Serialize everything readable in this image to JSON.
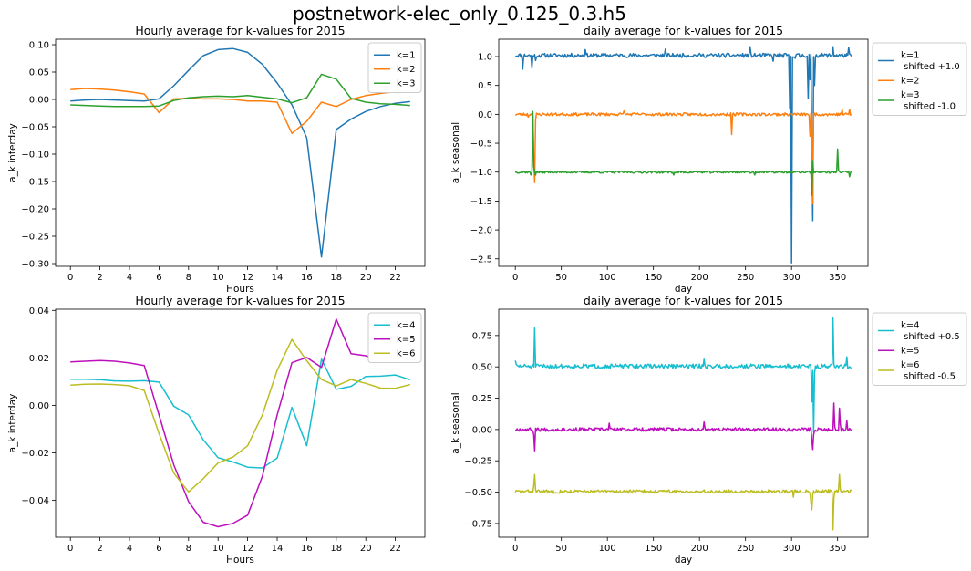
{
  "figure_title": "postnetwork-elec_only_0.125_0.3.h5",
  "chart_data": [
    {
      "type": "line",
      "title": "Hourly average for k-values for 2015",
      "xlabel": "Hours",
      "ylabel": "a_k interday",
      "xlim": [
        -1,
        24
      ],
      "ylim": [
        -0.305,
        0.11
      ],
      "xticks": [
        0,
        2,
        4,
        6,
        8,
        10,
        12,
        14,
        16,
        18,
        20,
        22
      ],
      "yticks": [
        -0.3,
        -0.25,
        -0.2,
        -0.15,
        -0.1,
        -0.05,
        0.0,
        0.05,
        0.1
      ],
      "ytick_labels": [
        "−0.30",
        "−0.25",
        "−0.20",
        "−0.15",
        "−0.10",
        "−0.05",
        "0.00",
        "0.05",
        "0.10"
      ],
      "legend_position": "top-right",
      "legend_outside": false,
      "x": [
        0,
        1,
        2,
        3,
        4,
        5,
        6,
        7,
        8,
        9,
        10,
        11,
        12,
        13,
        14,
        15,
        16,
        17,
        18,
        19,
        20,
        21,
        22,
        23
      ],
      "series": [
        {
          "name": "k=1",
          "color": "#1f77b4",
          "values": [
            -0.003,
            -0.001,
            0.0,
            -0.001,
            -0.002,
            -0.003,
            0.001,
            0.025,
            0.053,
            0.08,
            0.091,
            0.093,
            0.086,
            0.064,
            0.03,
            -0.01,
            -0.07,
            -0.288,
            -0.055,
            -0.036,
            -0.022,
            -0.013,
            -0.007,
            -0.004
          ]
        },
        {
          "name": "k=2",
          "color": "#ff7f0e",
          "values": [
            0.018,
            0.02,
            0.019,
            0.017,
            0.014,
            0.01,
            -0.024,
            0.001,
            0.002,
            0.001,
            0.001,
            0.0,
            -0.003,
            -0.003,
            -0.005,
            -0.062,
            -0.04,
            -0.005,
            -0.013,
            0.0,
            0.007,
            0.011,
            0.014,
            0.016
          ]
        },
        {
          "name": "k=3",
          "color": "#2ca02c",
          "values": [
            -0.01,
            -0.011,
            -0.012,
            -0.013,
            -0.013,
            -0.013,
            -0.012,
            -0.002,
            0.003,
            0.005,
            0.006,
            0.005,
            0.007,
            0.004,
            0.001,
            -0.006,
            0.003,
            0.046,
            0.037,
            0.002,
            -0.005,
            -0.008,
            -0.009,
            -0.011
          ]
        }
      ]
    },
    {
      "type": "line",
      "title": "daily average for k-values for 2015",
      "xlabel": "day",
      "ylabel": "a_k seasonal",
      "xlim": [
        -18,
        383
      ],
      "ylim": [
        -2.63,
        1.3
      ],
      "xticks": [
        0,
        50,
        100,
        150,
        200,
        250,
        300,
        350
      ],
      "yticks": [
        -2.5,
        -2.0,
        -1.5,
        -1.0,
        -0.5,
        0.0,
        0.5,
        1.0
      ],
      "ytick_labels": [
        "−2.5",
        "−2.0",
        "−1.5",
        "−1.0",
        "−0.5",
        "0.0",
        "0.5",
        "1.0"
      ],
      "legend_position": "outside-right",
      "legend_outside": true,
      "series": [
        {
          "name": "k=1\n shifted +1.0",
          "color": "#1f77b4",
          "base": 1.02,
          "noise": 0.035,
          "seed": 11,
          "spikes": [
            [
              8,
              0.78
            ],
            [
              18,
              0.8
            ],
            [
              22,
              0.93
            ],
            [
              76,
              1.12
            ],
            [
              163,
              1.13
            ],
            [
              255,
              1.17
            ],
            [
              280,
              0.92
            ],
            [
              298,
              0.1
            ],
            [
              300,
              -2.57
            ],
            [
              304,
              0.97
            ],
            [
              309,
              0.99
            ],
            [
              318,
              0.27
            ],
            [
              320,
              0.6
            ],
            [
              322,
              -0.5
            ],
            [
              323,
              -1.84
            ],
            [
              325,
              0.5
            ],
            [
              345,
              1.17
            ],
            [
              362,
              1.16
            ]
          ]
        },
        {
          "name": "k=2",
          "color": "#ff7f0e",
          "base": 0.0,
          "noise": 0.025,
          "seed": 23,
          "spikes": [
            [
              14,
              -0.05
            ],
            [
              20,
              -0.8
            ],
            [
              21,
              -1.18
            ],
            [
              22,
              -0.1
            ],
            [
              118,
              0.06
            ],
            [
              235,
              -0.35
            ],
            [
              320,
              -0.38
            ],
            [
              322,
              -0.12
            ],
            [
              323,
              -1.55
            ],
            [
              325,
              0.02
            ],
            [
              355,
              0.08
            ],
            [
              363,
              0.09
            ]
          ]
        },
        {
          "name": "k=3\n shifted -1.0",
          "color": "#2ca02c",
          "base": -1.0,
          "noise": 0.018,
          "seed": 37,
          "spikes": [
            [
              17,
              -1.05
            ],
            [
              19,
              0.05
            ],
            [
              20,
              -0.9
            ],
            [
              22,
              -1.05
            ],
            [
              172,
              -1.05
            ],
            [
              260,
              -1.05
            ],
            [
              322,
              -1.4
            ],
            [
              323,
              -0.8
            ],
            [
              325,
              -1.0
            ],
            [
              350,
              -0.6
            ],
            [
              351,
              -0.97
            ],
            [
              363,
              -1.08
            ]
          ]
        }
      ]
    },
    {
      "type": "line",
      "title": "Hourly average for k-values for 2015",
      "xlabel": "Hours",
      "ylabel": "a_k interday",
      "xlim": [
        -1,
        24
      ],
      "ylim": [
        -0.0555,
        0.0405
      ],
      "xticks": [
        0,
        2,
        4,
        6,
        8,
        10,
        12,
        14,
        16,
        18,
        20,
        22
      ],
      "yticks": [
        -0.04,
        -0.02,
        0.0,
        0.02,
        0.04
      ],
      "ytick_labels": [
        "−0.04",
        "−0.02",
        "0.00",
        "0.02",
        "0.04"
      ],
      "legend_position": "top-right",
      "legend_outside": false,
      "x": [
        0,
        1,
        2,
        3,
        4,
        5,
        6,
        7,
        8,
        9,
        10,
        11,
        12,
        13,
        14,
        15,
        16,
        17,
        18,
        19,
        20,
        21,
        22,
        23
      ],
      "series": [
        {
          "name": "k=4",
          "color": "#17becf",
          "values": [
            0.011,
            0.011,
            0.0108,
            0.0103,
            0.0102,
            0.0104,
            0.0098,
            -0.0003,
            -0.004,
            -0.0145,
            -0.022,
            -0.0238,
            -0.026,
            -0.0263,
            -0.0222,
            -0.0008,
            -0.017,
            0.0195,
            0.0068,
            0.008,
            0.0122,
            0.0123,
            0.0128,
            0.0108
          ]
        },
        {
          "name": "k=5",
          "color": "#bd10bd",
          "values": [
            0.0183,
            0.0186,
            0.0189,
            0.0186,
            0.0179,
            0.0168,
            -0.004,
            -0.025,
            -0.0405,
            -0.0492,
            -0.0511,
            -0.0497,
            -0.0462,
            -0.0298,
            -0.004,
            0.018,
            0.0202,
            0.016,
            0.0363,
            0.0218,
            0.0209,
            0.0185,
            0.0185,
            0.0188
          ]
        },
        {
          "name": "k=6",
          "color": "#bcbd22",
          "values": [
            0.0085,
            0.0089,
            0.009,
            0.0088,
            0.0083,
            0.0063,
            -0.0118,
            -0.0285,
            -0.0364,
            -0.0308,
            -0.0242,
            -0.0218,
            -0.017,
            -0.004,
            0.0148,
            0.0278,
            0.0188,
            0.0109,
            0.0082,
            0.0109,
            0.0093,
            0.0073,
            0.0072,
            0.0088
          ]
        }
      ]
    },
    {
      "type": "line",
      "title": "daily average for k-values for 2015",
      "xlabel": "day",
      "ylabel": "a_k seasonal",
      "xlim": [
        -18,
        383
      ],
      "ylim": [
        -0.86,
        0.96
      ],
      "xticks": [
        0,
        50,
        100,
        150,
        200,
        250,
        300,
        350
      ],
      "yticks": [
        -0.75,
        -0.5,
        -0.25,
        0.0,
        0.25,
        0.5,
        0.75
      ],
      "ytick_labels": [
        "−0.75",
        "−0.50",
        "−0.25",
        "0.00",
        "0.25",
        "0.50",
        "0.75"
      ],
      "legend_position": "outside-right",
      "legend_outside": true,
      "series": [
        {
          "name": "k=4\n shifted +0.5",
          "color": "#17becf",
          "base": 0.505,
          "noise": 0.017,
          "seed": 51,
          "spikes": [
            [
              0,
              0.55
            ],
            [
              20,
              0.5
            ],
            [
              21,
              0.81
            ],
            [
              22,
              0.5
            ],
            [
              205,
              0.56
            ],
            [
              322,
              0.22
            ],
            [
              323,
              0.47
            ],
            [
              324,
              -0.02
            ],
            [
              325,
              0.45
            ],
            [
              345,
              0.89
            ],
            [
              346,
              0.52
            ],
            [
              360,
              0.58
            ],
            [
              365,
              0.49
            ]
          ]
        },
        {
          "name": "k=5",
          "color": "#bd10bd",
          "base": 0.0,
          "noise": 0.014,
          "seed": 67,
          "spikes": [
            [
              20,
              -0.04
            ],
            [
              21,
              -0.17
            ],
            [
              22,
              0.01
            ],
            [
              102,
              0.05
            ],
            [
              205,
              0.06
            ],
            [
              322,
              -0.08
            ],
            [
              323,
              -0.16
            ],
            [
              324,
              -0.04
            ],
            [
              346,
              0.21
            ],
            [
              347,
              0.02
            ],
            [
              352,
              0.17
            ],
            [
              353,
              0.04
            ],
            [
              360,
              0.07
            ]
          ]
        },
        {
          "name": "k=6\n shifted -0.5",
          "color": "#bcbd22",
          "base": -0.495,
          "noise": 0.013,
          "seed": 83,
          "spikes": [
            [
              20,
              -0.45
            ],
            [
              21,
              -0.36
            ],
            [
              22,
              -0.48
            ],
            [
              302,
              -0.54
            ],
            [
              321,
              -0.58
            ],
            [
              322,
              -0.64
            ],
            [
              323,
              -0.52
            ],
            [
              340,
              -0.48
            ],
            [
              345,
              -0.8
            ],
            [
              346,
              -0.55
            ],
            [
              352,
              -0.36
            ],
            [
              353,
              -0.48
            ]
          ]
        }
      ]
    }
  ]
}
